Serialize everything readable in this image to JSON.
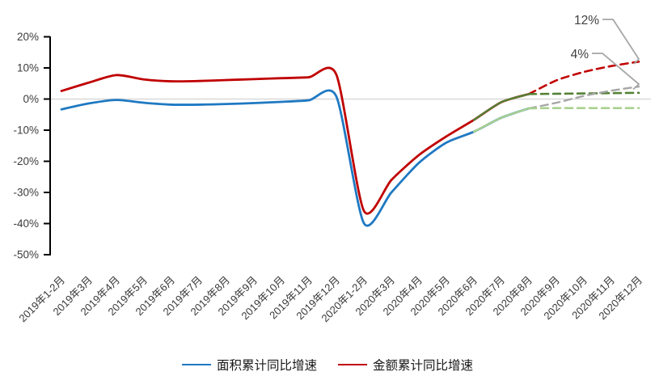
{
  "chart_data": {
    "type": "line",
    "title": "",
    "y_axis": {
      "ticks": [
        {
          "label": "20%",
          "value": 20
        },
        {
          "label": "10%",
          "value": 10
        },
        {
          "label": "0%",
          "value": 0
        },
        {
          "label": "-10%",
          "value": -10
        },
        {
          "label": "-20%",
          "value": -20
        },
        {
          "label": "-30%",
          "value": -30
        },
        {
          "label": "-40%",
          "value": -40
        },
        {
          "label": "-50%",
          "value": -50
        }
      ],
      "ylim": [
        -50,
        20
      ]
    },
    "categories": [
      "2019年1-2月",
      "2019年3月",
      "2019年4月",
      "2019年5月",
      "2019年6月",
      "2019年7月",
      "2019年8月",
      "2019年9月",
      "2019年10月",
      "2019年11月",
      "2019年12月",
      "2020年1-2月",
      "2020年3月",
      "2020年4月",
      "2020年5月",
      "2020年6月",
      "2020年7月",
      "2020年8月",
      "2020年9月",
      "2020年10月",
      "2020年11月",
      "2020年12月"
    ],
    "series": [
      {
        "id": "area-actual",
        "color": "#1F79C2",
        "dashed": false,
        "width": 2.8,
        "start_index": 0,
        "values": [
          -3.3,
          -1.4,
          -0.3,
          -1.2,
          -1.8,
          -1.8,
          -1.6,
          -1.3,
          -0.9,
          -0.4,
          0.8,
          -39.9,
          -30.0,
          -20.5,
          -14.0,
          -10.5,
          -6.0,
          -3.0
        ]
      },
      {
        "id": "amount-actual",
        "color": "#C00000",
        "dashed": false,
        "width": 2.8,
        "start_index": 0,
        "values": [
          2.6,
          5.3,
          7.7,
          6.3,
          5.7,
          5.8,
          6.1,
          6.4,
          6.7,
          7.0,
          7.8,
          -35.9,
          -26.0,
          -18.0,
          -12.0,
          -6.7,
          -1.0,
          1.6
        ]
      },
      {
        "id": "area-scenario-overlap",
        "color": "#A9D18E",
        "dashed": false,
        "width": 2.4,
        "start_index": 15,
        "values": [
          -10.5,
          -6.0,
          -3.0
        ]
      },
      {
        "id": "amount-scenario-overlap",
        "color": "#538135",
        "dashed": false,
        "width": 2.4,
        "start_index": 15,
        "values": [
          -6.7,
          -1.0,
          1.6
        ]
      },
      {
        "id": "amount-forecast-upper",
        "color": "#C00000",
        "dashed": true,
        "width": 2.6,
        "start_index": 17,
        "values": [
          1.6,
          6.0,
          8.7,
          10.6,
          12.0
        ]
      },
      {
        "id": "amount-forecast-lower",
        "color": "#538135",
        "dashed": true,
        "width": 2.6,
        "start_index": 17,
        "values": [
          1.6,
          1.7,
          1.8,
          1.9,
          2.0
        ]
      },
      {
        "id": "area-forecast-upper",
        "color": "#A6A6A6",
        "dashed": true,
        "width": 2.4,
        "start_index": 17,
        "values": [
          -3.0,
          -1.2,
          1.0,
          2.7,
          4.0
        ]
      },
      {
        "id": "area-forecast-lower",
        "color": "#A9D18E",
        "dashed": true,
        "width": 2.6,
        "start_index": 17,
        "values": [
          -3.0,
          -2.9,
          -2.9,
          -2.9,
          -2.9
        ]
      }
    ],
    "annotations": [
      {
        "label": "12%",
        "value": 12
      },
      {
        "label": "4%",
        "value": 4
      }
    ],
    "legend": [
      {
        "label": "面积累计同比增速",
        "color": "#1F79C2"
      },
      {
        "label": "金额累计同比增速",
        "color": "#C00000"
      }
    ],
    "colors": {
      "gridline": "#D9D9D9",
      "axis": "#000000",
      "leader": "#A6A6A6"
    }
  }
}
